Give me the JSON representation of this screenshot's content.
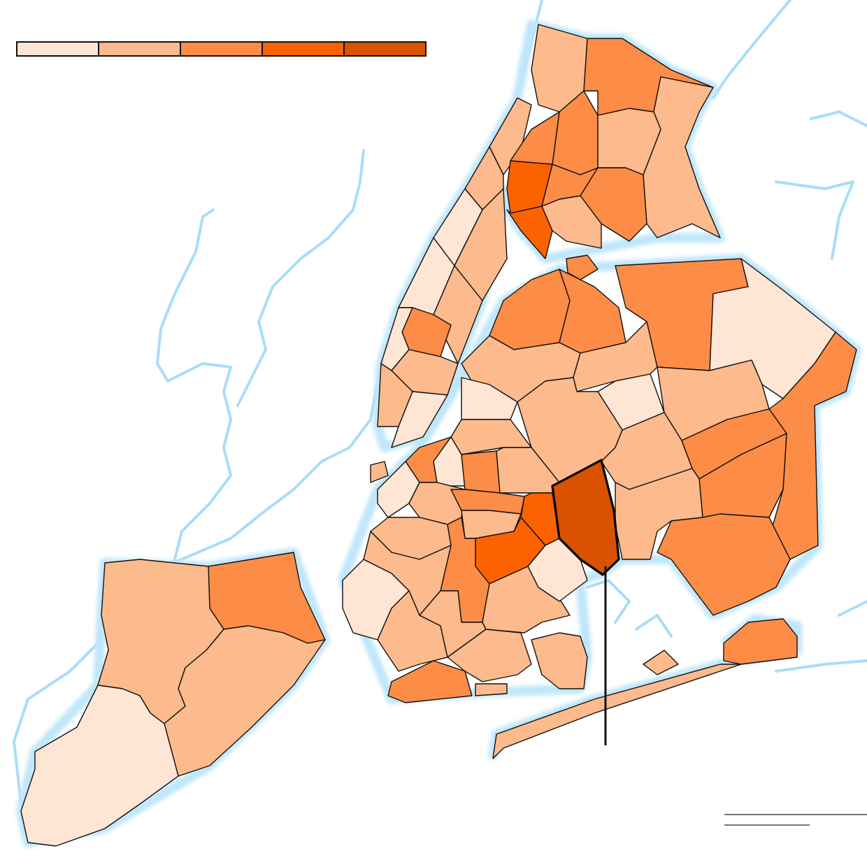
{
  "legend": {
    "colors": [
      "#fee5d4",
      "#fdba8c",
      "#fd8c47",
      "#fd6200",
      "#d95200"
    ]
  },
  "map": {
    "water_color": "#bfe6fb",
    "border_color": "#111111",
    "highlighted_class": 4,
    "highlight_pointer": true
  },
  "scale_bar": {
    "color": "#777777"
  }
}
